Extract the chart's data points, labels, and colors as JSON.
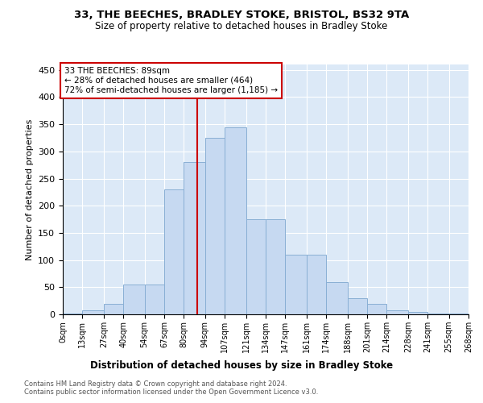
{
  "title1": "33, THE BEECHES, BRADLEY STOKE, BRISTOL, BS32 9TA",
  "title2": "Size of property relative to detached houses in Bradley Stoke",
  "xlabel": "Distribution of detached houses by size in Bradley Stoke",
  "ylabel": "Number of detached properties",
  "bin_edges": [
    0,
    13,
    27,
    40,
    54,
    67,
    80,
    94,
    107,
    121,
    134,
    147,
    161,
    174,
    188,
    201,
    214,
    228,
    241,
    255,
    268
  ],
  "bar_heights": [
    2,
    7,
    20,
    55,
    55,
    230,
    280,
    325,
    345,
    175,
    175,
    110,
    110,
    60,
    30,
    20,
    8,
    5,
    2,
    2
  ],
  "bar_color": "#c6d9f1",
  "bar_edge_color": "#89afd4",
  "reference_line_x": 89,
  "reference_line_color": "#cc0000",
  "annotation_text": "33 THE BEECHES: 89sqm\n← 28% of detached houses are smaller (464)\n72% of semi-detached houses are larger (1,185) →",
  "annotation_box_facecolor": "white",
  "annotation_box_edgecolor": "#cc0000",
  "ylim": [
    0,
    460
  ],
  "yticks": [
    0,
    50,
    100,
    150,
    200,
    250,
    300,
    350,
    400,
    450
  ],
  "plot_bg_color": "#dce9f7",
  "footer1": "Contains HM Land Registry data © Crown copyright and database right 2024.",
  "footer2": "Contains public sector information licensed under the Open Government Licence v3.0."
}
